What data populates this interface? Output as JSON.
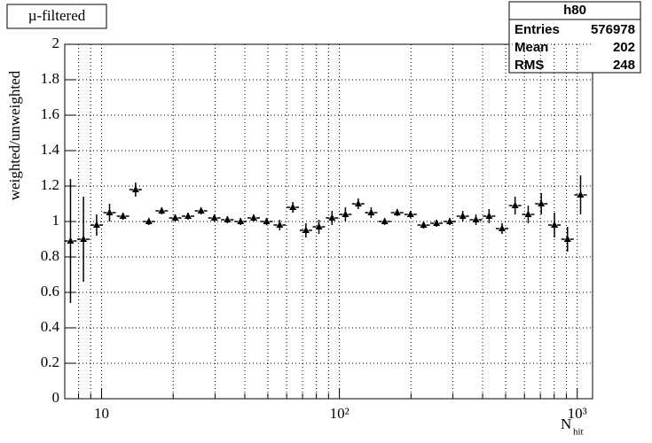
{
  "chart_data": {
    "type": "errorbar",
    "title": "µ-filtered",
    "ylabel": "weighted/unweighted",
    "xlabel": "N",
    "xlabel_sub": "hit",
    "stats": {
      "name": "h80",
      "rows": [
        [
          "Entries",
          "576978"
        ],
        [
          "Mean",
          "202"
        ],
        [
          "RMS",
          "248"
        ]
      ]
    },
    "log_x": true,
    "grid": true,
    "color": "#000000",
    "xlim": [
      7,
      1160
    ],
    "ylim": [
      0,
      2
    ],
    "xticks": [
      10,
      {
        "value": 100,
        "label": "10²"
      },
      {
        "value": 1000,
        "label": "10³"
      }
    ],
    "xminor_ticks": [
      8,
      9,
      20,
      30,
      40,
      50,
      60,
      70,
      80,
      90,
      200,
      300,
      400,
      500,
      600,
      700,
      800,
      900
    ],
    "yticks": [
      0,
      0.2,
      0.4,
      0.6,
      0.8,
      1,
      1.2,
      1.4,
      1.6,
      1.8,
      2
    ],
    "x": [
      7.4,
      8.39,
      9.53,
      10.8,
      12.3,
      13.9,
      15.8,
      17.9,
      20.4,
      23.1,
      26.2,
      29.8,
      33.8,
      38.4,
      43.6,
      49.4,
      56.1,
      63.7,
      72.3,
      82.0,
      93.1,
      106,
      120,
      136,
      155,
      175,
      199,
      226,
      256,
      291,
      330,
      375,
      426,
      483,
      548,
      622,
      706,
      802,
      910,
      1033
    ],
    "values": [
      0.89,
      0.9,
      0.98,
      1.05,
      1.03,
      1.18,
      1.0,
      1.06,
      1.02,
      1.03,
      1.06,
      1.02,
      1.01,
      1.0,
      1.02,
      1.0,
      0.98,
      1.08,
      0.95,
      0.97,
      1.02,
      1.04,
      1.1,
      1.05,
      1.0,
      1.05,
      1.04,
      0.98,
      0.99,
      1.0,
      1.03,
      1.01,
      1.03,
      0.96,
      1.09,
      1.04,
      1.1,
      0.98,
      0.9,
      1.15
    ],
    "errors": [
      0.35,
      0.24,
      0.06,
      0.05,
      0.02,
      0.04,
      0.02,
      0.02,
      0.02,
      0.02,
      0.02,
      0.02,
      0.02,
      0.02,
      0.02,
      0.02,
      0.03,
      0.03,
      0.04,
      0.04,
      0.04,
      0.04,
      0.03,
      0.03,
      0.02,
      0.02,
      0.02,
      0.02,
      0.02,
      0.02,
      0.03,
      0.03,
      0.04,
      0.03,
      0.05,
      0.05,
      0.06,
      0.07,
      0.07,
      0.11
    ]
  }
}
